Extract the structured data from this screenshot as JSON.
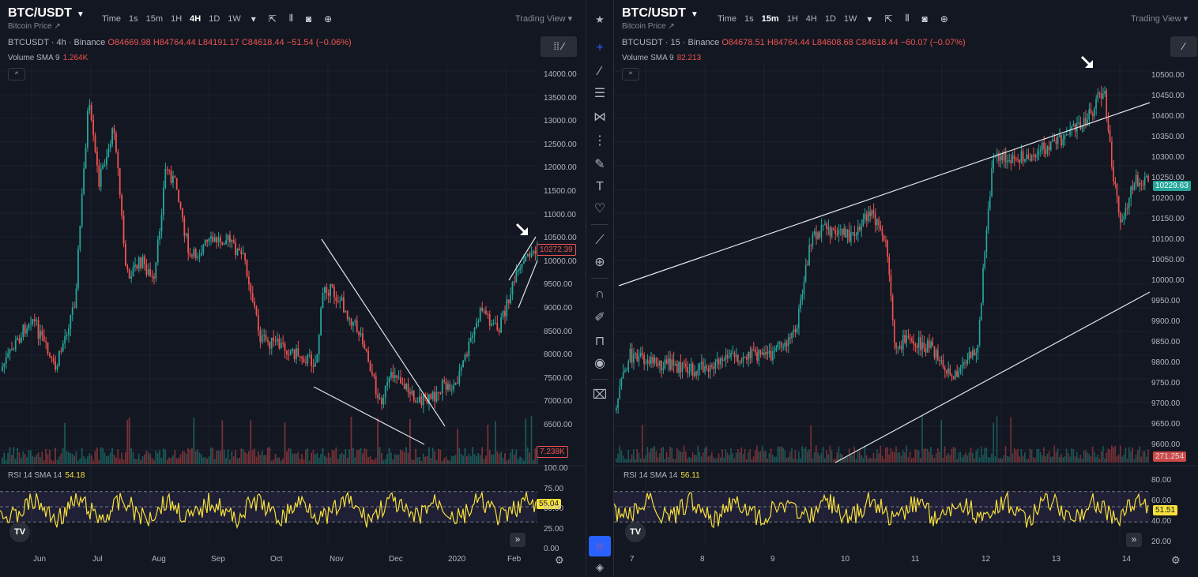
{
  "left": {
    "symbol": "BTC/USDT",
    "subtitle": "Bitcoin Price ↗",
    "timeframes": [
      "Time",
      "1s",
      "15m",
      "1H",
      "4H",
      "1D",
      "1W"
    ],
    "active_tf": "4H",
    "trading_view": "Trading View",
    "info_prefix": "BTCUSDT · 4h · Binance",
    "ohlc": {
      "o": "O84669.98",
      "h": "H84764.44",
      "l": "L84191.17",
      "c": "C84618.44",
      "chg": "−51.54 (−0.06%)"
    },
    "volume_label": "Volume SMA 9",
    "volume_value": "1.264K",
    "price_axis": [
      "14000.00",
      "13500.00",
      "13000.00",
      "12500.00",
      "12000.00",
      "11500.00",
      "11000.00",
      "10500.00",
      "10000.00",
      "9500.00",
      "9000.00",
      "8500.00",
      "8000.00",
      "7500.00",
      "7000.00",
      "6500.00"
    ],
    "last_price": "10272.39",
    "vol_box": "7.238K",
    "rsi_label": "RSI 14 SMA 14",
    "rsi_value": "54.18",
    "rsi_axis": [
      "100.00",
      "75.00",
      "50.00",
      "25.00",
      "0.00"
    ],
    "rsi_box": "55.04",
    "x_labels": [
      "Jun",
      "Jul",
      "Aug",
      "Sep",
      "Oct",
      "Nov",
      "Dec",
      "2020",
      "Feb"
    ]
  },
  "right": {
    "symbol": "BTC/USDT",
    "subtitle": "Bitcoin Price ↗",
    "timeframes": [
      "Time",
      "1s",
      "15m",
      "1H",
      "4H",
      "1D",
      "1W"
    ],
    "active_tf": "15m",
    "trading_view": "Trading View",
    "info_prefix": "BTCUSDT · 15 · Binance",
    "ohlc": {
      "o": "O84678.51",
      "h": "H84764.44",
      "l": "L84608.68",
      "c": "C84618.44",
      "chg": "−60.07 (−0.07%)"
    },
    "volume_label": "Volume SMA 9",
    "volume_value": "82.213",
    "price_axis": [
      "10500.00",
      "10450.00",
      "10400.00",
      "10350.00",
      "10300.00",
      "10250.00",
      "10200.00",
      "10150.00",
      "10100.00",
      "10050.00",
      "10000.00",
      "9950.00",
      "9900.00",
      "9850.00",
      "9800.00",
      "9750.00",
      "9700.00",
      "9650.00",
      "9600.00"
    ],
    "last_price": "10229.63",
    "vol_box": "271.254",
    "rsi_label": "RSI 14 SMA 14",
    "rsi_value": "56.11",
    "rsi_axis": [
      "80.00",
      "60.00",
      "40.00",
      "20.00"
    ],
    "rsi_box": "51.51",
    "x_labels": [
      "7",
      "8",
      "9",
      "10",
      "11",
      "12",
      "13",
      "14"
    ]
  },
  "toolbar": {
    "tools": [
      "crosshair-icon",
      "trend-line-icon",
      "fib-icon",
      "pattern-icon",
      "projection-icon",
      "brush-icon",
      "text-icon",
      "heart-icon",
      "ruler-icon",
      "zoom-icon",
      "magnet-icon",
      "lock-draw-icon",
      "lock-icon",
      "eye-icon",
      "trash-icon"
    ]
  },
  "logo": "TV",
  "colors": {
    "up": "#26a69a",
    "down": "#ef5350",
    "rsi": "#f7e03c",
    "bg": "#131722",
    "accent": "#2962ff"
  }
}
